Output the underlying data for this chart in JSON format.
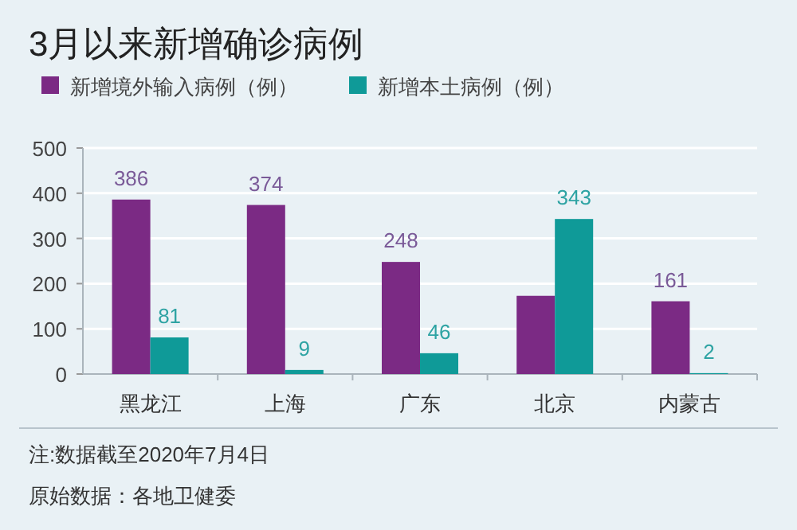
{
  "chart_data": {
    "type": "bar",
    "title": "3月以来新增确诊病例",
    "categories": [
      "黑龙江",
      "上海",
      "广东",
      "北京",
      "内蒙古"
    ],
    "series": [
      {
        "name": "新增境外输入病例（例）",
        "color": "#7b2a84",
        "values": [
          386,
          374,
          248,
          173,
          161
        ],
        "value_labels": [
          "386",
          "374",
          "248",
          null,
          "161"
        ]
      },
      {
        "name": "新增本土病例（例）",
        "color": "#0f9a98",
        "values": [
          81,
          9,
          46,
          343,
          2
        ],
        "value_labels": [
          "81",
          "9",
          "46",
          "343",
          "2"
        ]
      }
    ],
    "ylim": [
      0,
      500
    ],
    "yticks": [
      0,
      100,
      200,
      300,
      400,
      500
    ],
    "grid": "y",
    "legend": "top left",
    "annotations": [
      "注:数据截至2020年7月4日",
      "原始数据：各地卫健委"
    ]
  }
}
